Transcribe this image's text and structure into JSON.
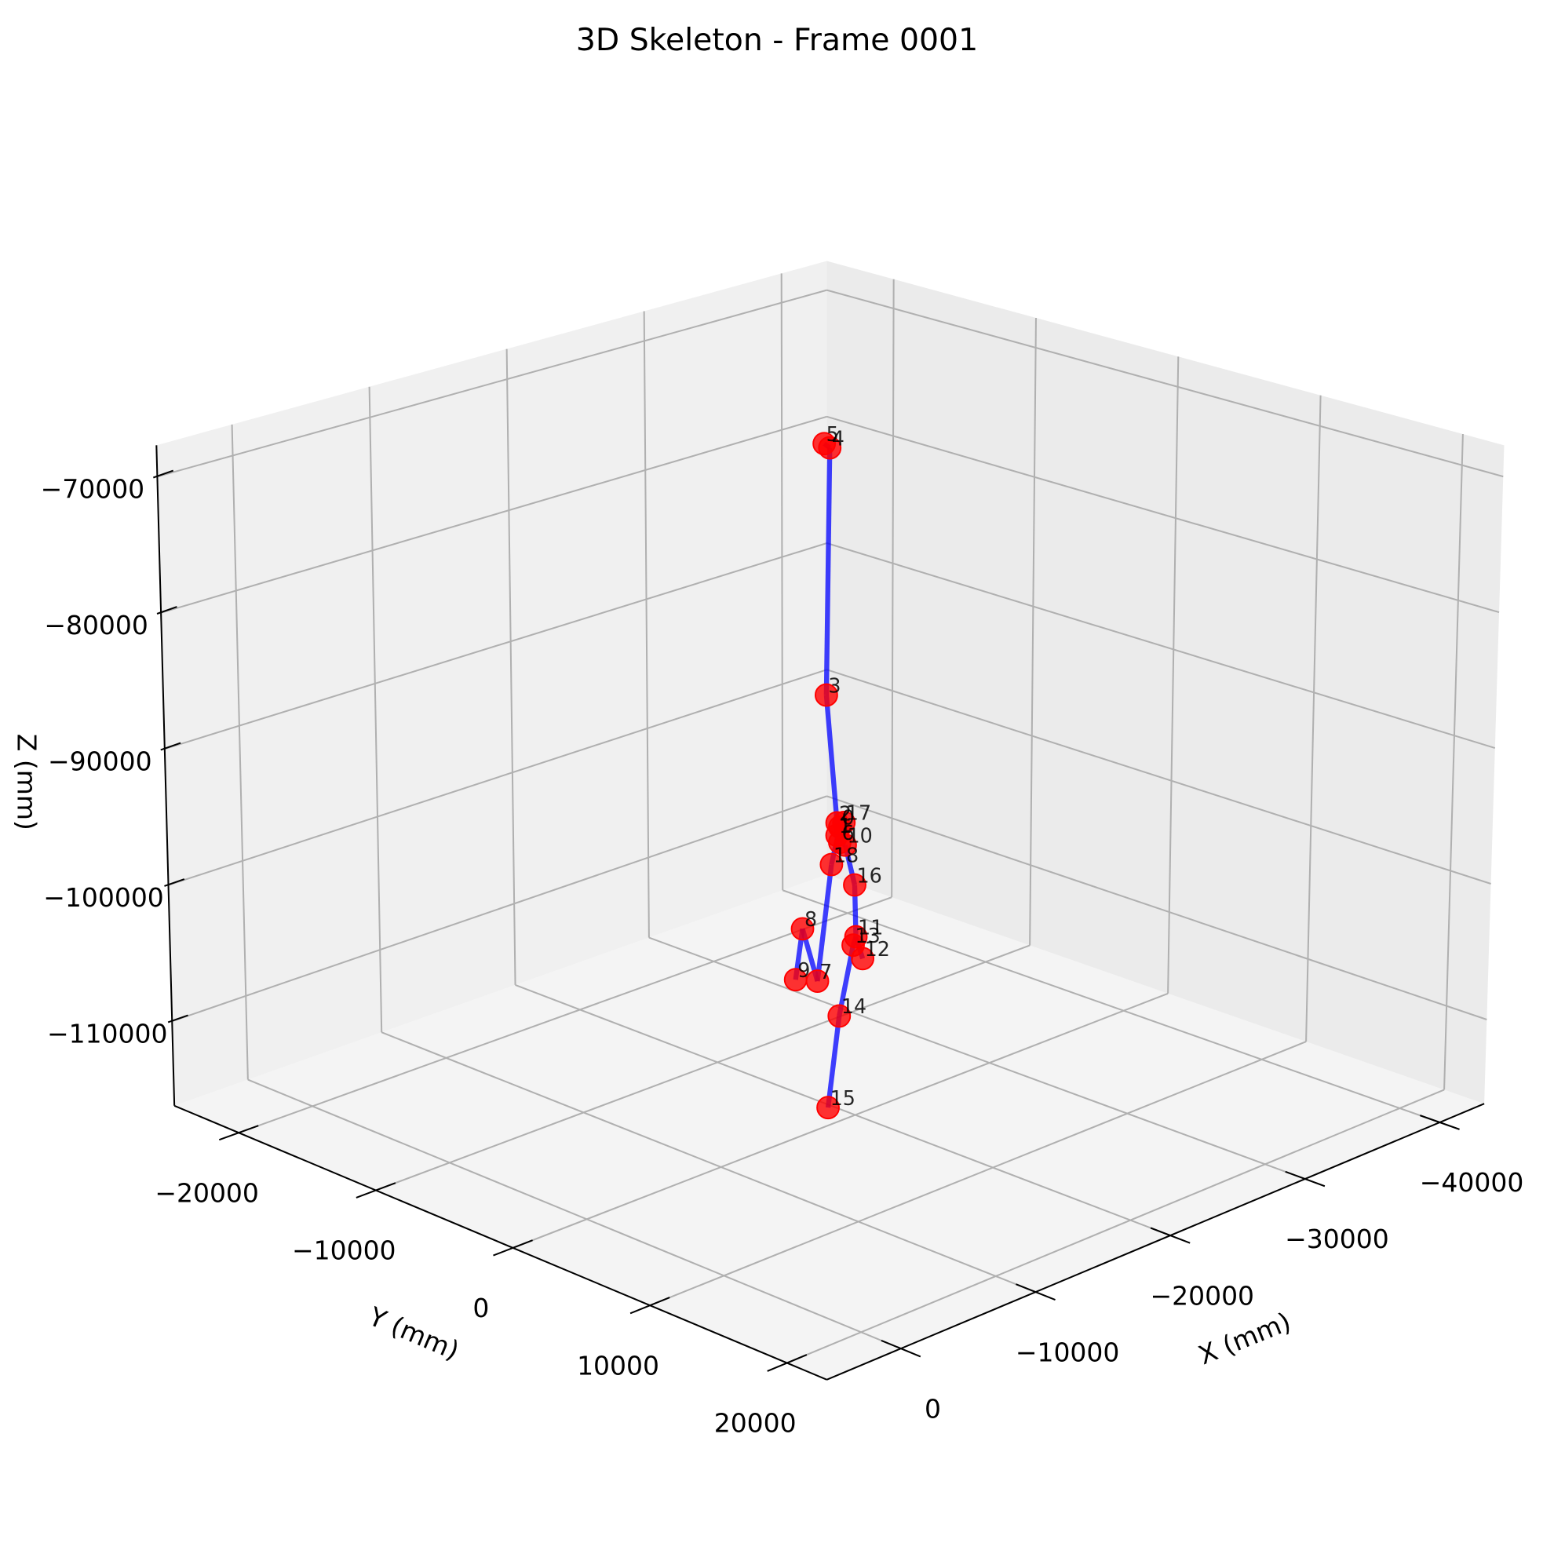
{
  "chart_data": {
    "type": "scatter3d",
    "title": "3D Skeleton - Frame 0001",
    "xlabel": "X (mm)",
    "ylabel": "Y (mm)",
    "zlabel": "Z (mm)",
    "xlim": [
      -43300,
      5500
    ],
    "ylim": [
      -24700,
      22900
    ],
    "zlim": [
      -116200,
      -67700
    ],
    "xticks": [
      0,
      {
        "value": -10000,
        "label": "−10000"
      },
      {
        "value": -20000,
        "label": "−20000"
      },
      {
        "value": -30000,
        "label": "−30000"
      },
      {
        "value": -40000,
        "label": "−40000"
      }
    ],
    "yticks": [
      {
        "value": -20000,
        "label": "−20000"
      },
      {
        "value": -10000,
        "label": "−10000"
      },
      0,
      10000,
      20000
    ],
    "zticks": [
      {
        "value": -70000,
        "label": "−70000"
      },
      {
        "value": -80000,
        "label": "−80000"
      },
      {
        "value": -90000,
        "label": "−90000"
      },
      {
        "value": -100000,
        "label": "−100000"
      },
      {
        "value": -110000,
        "label": "−110000"
      }
    ],
    "labels": [
      "0",
      "1",
      "2",
      "3",
      "4",
      "5",
      "6",
      "7",
      "8",
      "9",
      "10",
      "11",
      "12",
      "13",
      "14",
      "15",
      "16",
      "17",
      "18"
    ],
    "x": [
      -19300,
      -19200,
      -19200,
      -18800,
      -18900,
      -18700,
      -19300,
      -18500,
      -17900,
      -17700,
      -19500,
      -19900,
      -20200,
      -19800,
      -19300,
      -18900,
      -19900,
      -19500,
      -19000
    ],
    "y": [
      -500,
      -600,
      -600,
      -1000,
      -900,
      -1100,
      -500,
      -1300,
      -1800,
      -2100,
      -300,
      100,
      300,
      0,
      -500,
      -900,
      0,
      -400,
      -800
    ],
    "z": [
      -95400,
      -96000,
      -95100,
      -85900,
      -68100,
      -67800,
      -96500,
      -106500,
      -102700,
      -106400,
      -96700,
      -103300,
      -104900,
      -103900,
      -109000,
      -115600,
      -99600,
      -95100,
      -98100
    ],
    "edges": [
      [
        5,
        4
      ],
      [
        4,
        3
      ],
      [
        3,
        2
      ],
      [
        2,
        1
      ],
      [
        1,
        0
      ],
      [
        0,
        17
      ],
      [
        17,
        6
      ],
      [
        6,
        10
      ],
      [
        10,
        16
      ],
      [
        16,
        11
      ],
      [
        11,
        12
      ],
      [
        11,
        13
      ],
      [
        13,
        14
      ],
      [
        14,
        15
      ],
      [
        0,
        18
      ],
      [
        18,
        7
      ],
      [
        7,
        8
      ],
      [
        8,
        9
      ]
    ],
    "point_color": "#ff0000",
    "line_color": "#0000ff",
    "grid": true
  }
}
